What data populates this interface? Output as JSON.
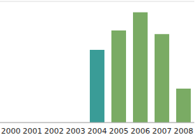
{
  "chart_data": {
    "type": "bar",
    "categories": [
      "2000",
      "2001",
      "2002",
      "2003",
      "2004",
      "2005",
      "2006",
      "2007",
      "2008"
    ],
    "values": [
      null,
      null,
      null,
      null,
      3.0,
      3.8,
      4.55,
      3.65,
      1.4
    ],
    "colors": [
      "#7aab64",
      "#7aab64",
      "#7aab64",
      "#7aab64",
      "#3a9c97",
      "#7aab64",
      "#7aab64",
      "#7aab64",
      "#7aab64"
    ],
    "ylim": [
      0,
      5
    ],
    "yticks": [
      0,
      1,
      2,
      3,
      4,
      5
    ],
    "grid": true,
    "tick_labels": "x"
  }
}
